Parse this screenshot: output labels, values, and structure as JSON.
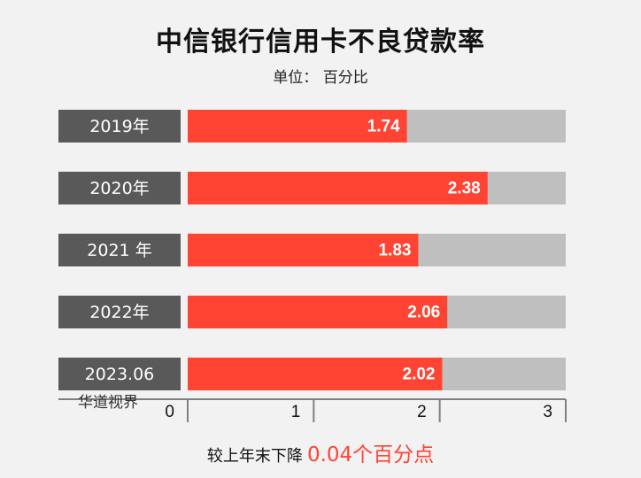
{
  "chart_data": {
    "type": "bar",
    "orientation": "horizontal",
    "title": "中信银行信用卡不良贷款率",
    "subtitle": "单位： 百分比",
    "categories": [
      "2019年",
      "2020年",
      "2021 年",
      "2022年",
      "2023.06"
    ],
    "values": [
      1.74,
      2.38,
      1.83,
      2.06,
      2.02
    ],
    "value_labels": [
      "1.74",
      "2.38",
      "1.83",
      "2.06",
      "2.02"
    ],
    "xlim": [
      0,
      3
    ],
    "x_ticks": [
      "0",
      "1",
      "2",
      "3"
    ],
    "grid": false,
    "legend": "none",
    "colors": {
      "bar": "#ff4433",
      "track": "#bfbfbf",
      "category_box": "#595959",
      "axis": "#7f7f7f"
    }
  },
  "watermark": "华道视界",
  "footer": {
    "text": "较上年末下降",
    "highlight": "0.04个百分点"
  }
}
